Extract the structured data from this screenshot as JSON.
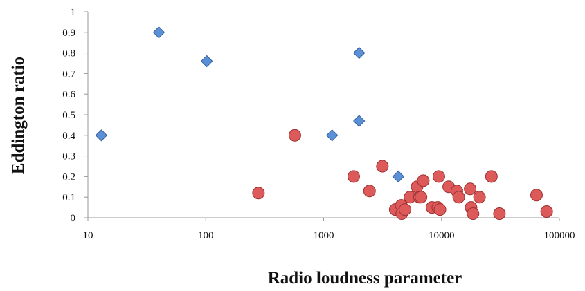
{
  "chart_data": {
    "type": "scatter",
    "xlabel": "Radio loudness parameter",
    "ylabel": "Eddington ratio",
    "x_scale": "log",
    "xlim": [
      10,
      100000
    ],
    "ylim": [
      0,
      1
    ],
    "x_ticks": [
      "10",
      "100",
      "1000",
      "10000",
      "100000"
    ],
    "y_ticks": [
      "0",
      "0.1",
      "0.2",
      "0.3",
      "0.4",
      "0.5",
      "0.6",
      "0.7",
      "0.8",
      "0.9",
      "1"
    ],
    "grid": false,
    "legend": "none",
    "series": [
      {
        "marker": "diamond",
        "color": "#5b8fd6",
        "points": [
          [
            13,
            0.4
          ],
          [
            40,
            0.9
          ],
          [
            102,
            0.76
          ],
          [
            1180,
            0.4
          ],
          [
            2000,
            0.8
          ],
          [
            2000,
            0.47
          ],
          [
            4300,
            0.2
          ]
        ]
      },
      {
        "marker": "circle",
        "color": "#dc5a5a",
        "points": [
          [
            280,
            0.12
          ],
          [
            570,
            0.4
          ],
          [
            1800,
            0.2
          ],
          [
            2450,
            0.13
          ],
          [
            3150,
            0.25
          ],
          [
            4050,
            0.04
          ],
          [
            4550,
            0.06
          ],
          [
            4600,
            0.02
          ],
          [
            4900,
            0.04
          ],
          [
            5400,
            0.1
          ],
          [
            6200,
            0.15
          ],
          [
            6500,
            0.1
          ],
          [
            6700,
            0.1
          ],
          [
            7000,
            0.18
          ],
          [
            8300,
            0.05
          ],
          [
            9300,
            0.05
          ],
          [
            9500,
            0.2
          ],
          [
            9700,
            0.04
          ],
          [
            11500,
            0.15
          ],
          [
            13500,
            0.13
          ],
          [
            14000,
            0.1
          ],
          [
            17500,
            0.14
          ],
          [
            17800,
            0.05
          ],
          [
            18500,
            0.02
          ],
          [
            21000,
            0.1
          ],
          [
            26500,
            0.2
          ],
          [
            31000,
            0.02
          ],
          [
            64000,
            0.11
          ],
          [
            78000,
            0.03
          ]
        ]
      }
    ]
  }
}
